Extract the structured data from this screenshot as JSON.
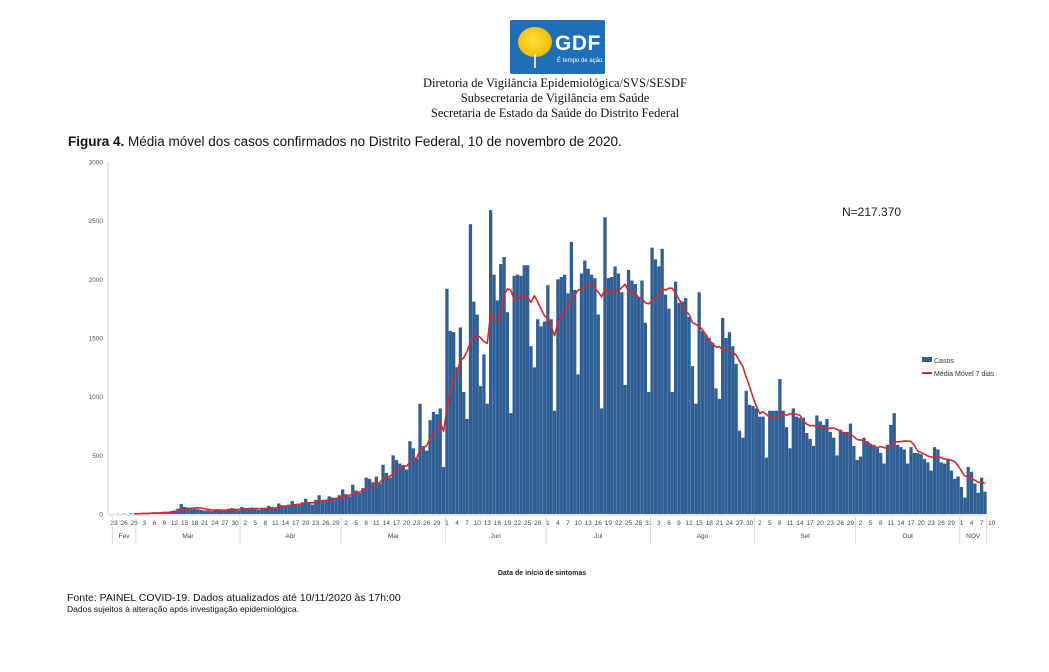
{
  "logo": {
    "brand": "GDF",
    "tagline": "É tempo de ação."
  },
  "header": {
    "lines": [
      "Diretoria de Vigilância Epidemiológica/SVS/SESDF",
      "Subsecretaria de Vigilância em Saúde",
      "Secretaria de Estado da Saúde do Distrito Federal"
    ]
  },
  "figure": {
    "label": "Figura 4.",
    "caption": " Média móvel dos casos confirmados no Distrito Federal, 10 de novembro de 2020."
  },
  "footer": {
    "source": "Fonte: PAINEL COVID-19. Dados atualizados até 10/11/2020 às 17h:00",
    "note": "Dados sujeitos à alteração após investigação epidemiológica."
  },
  "chart_data": {
    "type": "bar",
    "title": "Média móvel dos casos confirmados no Distrito Federal, 10 de novembro de 2020",
    "xlabel": "Data de início de sintomas",
    "ylabel": "",
    "ylim": [
      0,
      3000
    ],
    "yticks": [
      0,
      500,
      1000,
      1500,
      2000,
      2500,
      3000
    ],
    "grid": false,
    "legend_position": "right",
    "annotation": "N=217.370",
    "start_date": "2020-02-23",
    "end_date": "2020-11-10",
    "x_tick_every_days": 3,
    "x_tick_labels": [
      "23",
      "26",
      "29",
      "3",
      "6",
      "9",
      "12",
      "15",
      "18",
      "21",
      "24",
      "27",
      "30",
      "2",
      "5",
      "8",
      "11",
      "14",
      "17",
      "20",
      "23",
      "26",
      "29",
      "2",
      "5",
      "8",
      "11",
      "14",
      "17",
      "20",
      "23",
      "26",
      "29",
      "1",
      "4",
      "7",
      "10",
      "13",
      "16",
      "19",
      "22",
      "25",
      "28",
      "1",
      "4",
      "7",
      "10",
      "13",
      "16",
      "19",
      "22",
      "25",
      "28",
      "31",
      "3",
      "6",
      "9",
      "12",
      "15",
      "18",
      "21",
      "24",
      "27",
      "30",
      "2",
      "5",
      "8",
      "11",
      "14",
      "17",
      "20",
      "23",
      "26",
      "29",
      "2",
      "5",
      "8",
      "11",
      "14",
      "17",
      "20",
      "23",
      "26",
      "29",
      "1",
      "4",
      "7",
      "10"
    ],
    "months": [
      {
        "label": "Fev",
        "start_day": 0,
        "end_day": 6
      },
      {
        "label": "Mar",
        "start_day": 7,
        "end_day": 37
      },
      {
        "label": "Abr",
        "start_day": 38,
        "end_day": 67
      },
      {
        "label": "Mai",
        "start_day": 68,
        "end_day": 98
      },
      {
        "label": "Jun",
        "start_day": 99,
        "end_day": 128
      },
      {
        "label": "Jul",
        "start_day": 129,
        "end_day": 159
      },
      {
        "label": "Ago",
        "start_day": 160,
        "end_day": 190
      },
      {
        "label": "Set",
        "start_day": 191,
        "end_day": 220
      },
      {
        "label": "Out",
        "start_day": 221,
        "end_day": 251
      },
      {
        "label": "NOV",
        "start_day": 252,
        "end_day": 261
      }
    ],
    "series": [
      {
        "name": "Casos",
        "kind": "bar",
        "color": "#2f5f94",
        "values": [
          0,
          2,
          0,
          3,
          0,
          5,
          2,
          5,
          8,
          10,
          6,
          12,
          15,
          10,
          8,
          20,
          18,
          25,
          30,
          45,
          85,
          60,
          55,
          40,
          45,
          40,
          35,
          30,
          30,
          25,
          35,
          40,
          30,
          35,
          45,
          50,
          40,
          30,
          60,
          50,
          45,
          55,
          40,
          35,
          45,
          50,
          70,
          60,
          55,
          90,
          75,
          65,
          80,
          110,
          85,
          75,
          100,
          130,
          90,
          80,
          120,
          160,
          120,
          110,
          150,
          140,
          130,
          160,
          210,
          170,
          150,
          250,
          200,
          180,
          220,
          310,
          300,
          270,
          320,
          260,
          420,
          350,
          310,
          500,
          460,
          430,
          410,
          380,
          620,
          560,
          470,
          940,
          580,
          540,
          800,
          870,
          850,
          900,
          400,
          1920,
          1560,
          1550,
          1250,
          1590,
          1040,
          810,
          2470,
          1810,
          1700,
          1090,
          1360,
          940,
          2590,
          2040,
          1820,
          2130,
          2190,
          1720,
          860,
          2030,
          2040,
          2030,
          2120,
          2120,
          1430,
          1250,
          1660,
          1600,
          1640,
          1950,
          1660,
          880,
          2000,
          2020,
          2040,
          1880,
          2320,
          1910,
          1190,
          2050,
          2160,
          2090,
          2040,
          2010,
          1700,
          900,
          2530,
          2010,
          2020,
          2110,
          2050,
          1890,
          1100,
          2080,
          1990,
          1960,
          1850,
          1990,
          1630,
          1040,
          2270,
          2170,
          2110,
          2260,
          1870,
          1750,
          1040,
          1980,
          1800,
          1810,
          1840,
          1680,
          1260,
          940,
          1890,
          1560,
          1530,
          1500,
          1460,
          1070,
          980,
          1670,
          1500,
          1550,
          1430,
          1280,
          710,
          650,
          1050,
          930,
          920,
          900,
          830,
          830,
          480,
          880,
          880,
          880,
          1150,
          880,
          740,
          560,
          900,
          830,
          820,
          820,
          690,
          640,
          580,
          840,
          790,
          760,
          810,
          700,
          650,
          500,
          720,
          700,
          700,
          770,
          580,
          460,
          490,
          650,
          620,
          590,
          590,
          560,
          520,
          430,
          590,
          760,
          860,
          590,
          570,
          550,
          430,
          570,
          520,
          520,
          510,
          470,
          440,
          370,
          570,
          550,
          440,
          430,
          470,
          370,
          300,
          320,
          230,
          140,
          400,
          360,
          260,
          180,
          310,
          190
        ]
      },
      {
        "name": "Média Móvel 7 dias",
        "kind": "line",
        "color": "#d9282c",
        "window": 7
      }
    ]
  }
}
